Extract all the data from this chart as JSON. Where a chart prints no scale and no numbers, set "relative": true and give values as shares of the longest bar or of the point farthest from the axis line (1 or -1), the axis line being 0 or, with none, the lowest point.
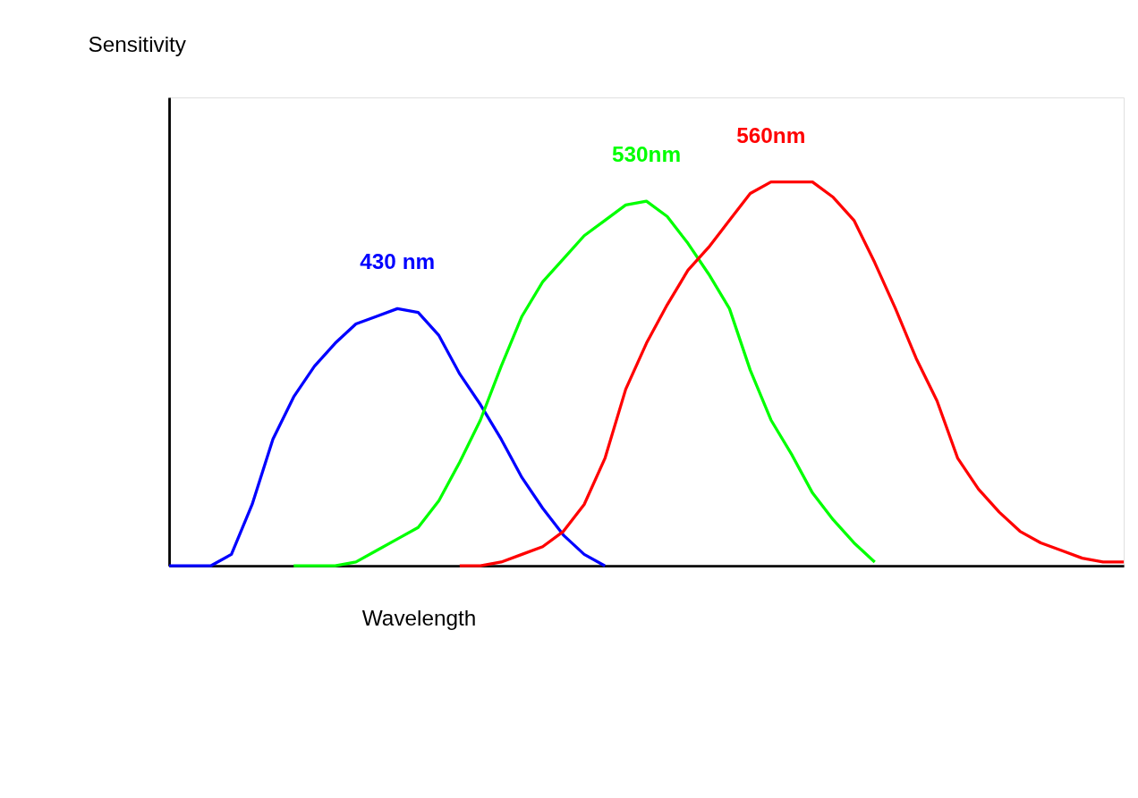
{
  "chart_data": {
    "type": "line",
    "relative": true,
    "annotations": [
      "Sensitivity"
    ],
    "xlabel": "Wavelength",
    "tick_labels": false,
    "line_style": "solid",
    "categories": [
      null,
      null,
      null,
      null,
      null,
      null,
      null,
      null,
      null,
      null,
      null,
      null,
      null,
      null,
      null,
      null,
      null,
      null,
      null,
      null,
      null,
      null,
      null,
      null,
      null,
      null,
      null,
      null,
      null,
      null,
      null,
      null,
      null,
      null,
      null,
      null,
      null,
      null,
      null,
      null,
      null,
      null,
      null,
      null,
      null,
      null,
      null
    ],
    "series": [
      {
        "name": "430 nm",
        "color": "#0000ff",
        "values": [
          0,
          0,
          0,
          0.03,
          0.16,
          0.33,
          0.44,
          0.52,
          0.58,
          0.63,
          0.65,
          0.67,
          0.66,
          0.6,
          0.5,
          0.42,
          0.33,
          0.23,
          0.15,
          0.08,
          0.03,
          0,
          null,
          null,
          null,
          null,
          null,
          null,
          null,
          null,
          null,
          null,
          null,
          null,
          null,
          null,
          null,
          null,
          null,
          null,
          null,
          null,
          null,
          null,
          null,
          null,
          null
        ]
      },
      {
        "name": "530nm",
        "color": "#00ff00",
        "values": [
          null,
          null,
          null,
          null,
          null,
          null,
          0,
          0,
          0,
          0.01,
          0.04,
          0.07,
          0.1,
          0.17,
          0.27,
          0.38,
          0.52,
          0.65,
          0.74,
          0.8,
          0.86,
          0.9,
          0.94,
          0.95,
          0.91,
          0.84,
          0.76,
          0.67,
          0.51,
          0.38,
          0.29,
          0.19,
          0.12,
          0.06,
          0.01,
          null,
          null,
          null,
          null,
          null,
          null,
          null,
          null,
          null,
          null,
          null,
          null
        ]
      },
      {
        "name": "560nm",
        "color": "#ff0000",
        "values": [
          null,
          null,
          null,
          null,
          null,
          null,
          null,
          null,
          null,
          null,
          null,
          null,
          null,
          null,
          0,
          0,
          0.01,
          0.03,
          0.05,
          0.09,
          0.16,
          0.28,
          0.46,
          0.58,
          0.68,
          0.77,
          0.83,
          0.9,
          0.97,
          1,
          1,
          1,
          0.96,
          0.9,
          0.79,
          0.67,
          0.54,
          0.43,
          0.28,
          0.2,
          0.14,
          0.09,
          0.06,
          0.04,
          0.02,
          0.01,
          0.01
        ]
      }
    ]
  }
}
